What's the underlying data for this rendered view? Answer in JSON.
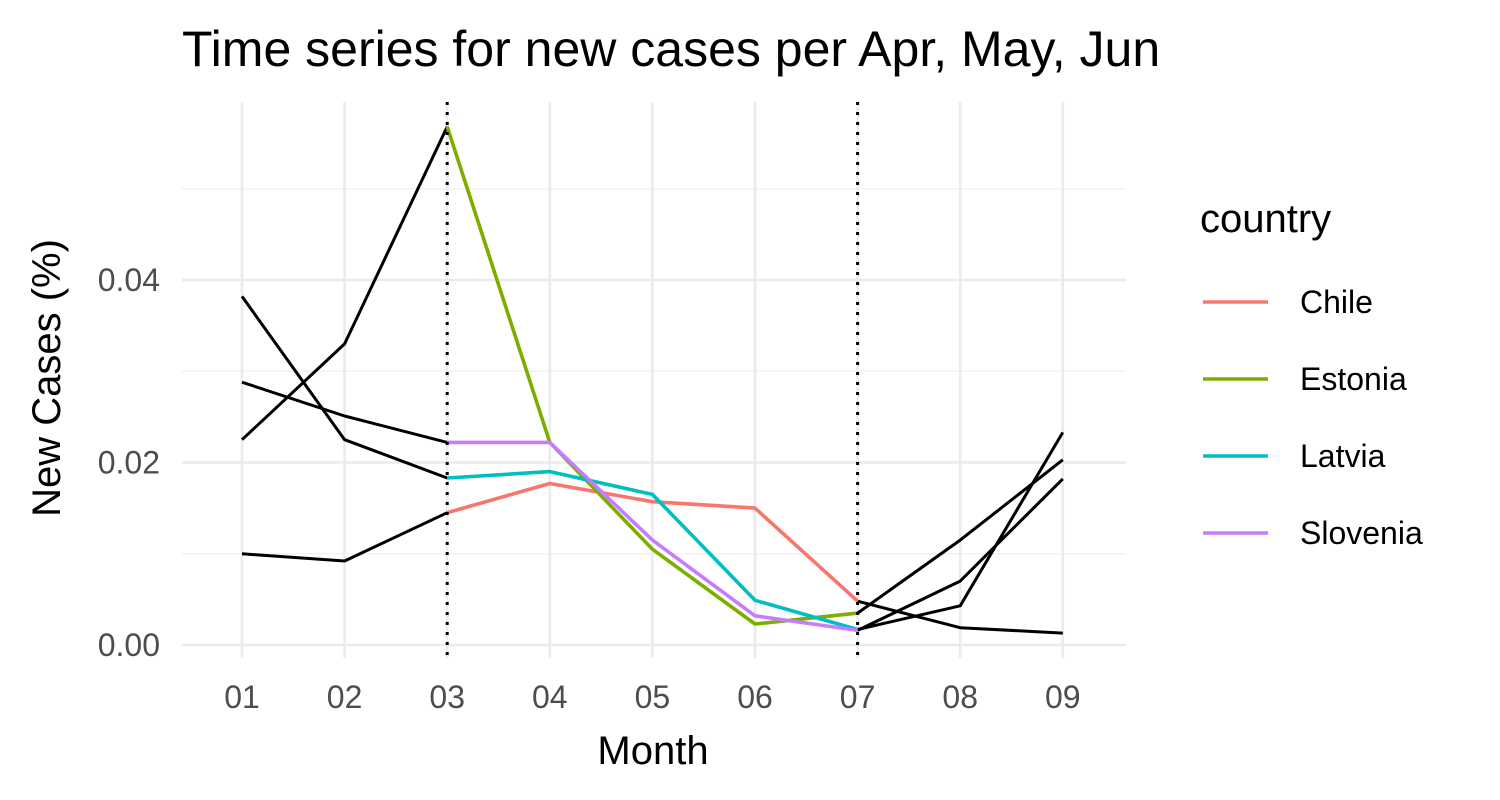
{
  "chart_data": {
    "type": "line",
    "title": "Time series for new cases per Apr, May, Jun",
    "xlabel": "Month",
    "ylabel": "New Cases (%)",
    "categories": [
      "01",
      "02",
      "03",
      "04",
      "05",
      "06",
      "07",
      "08",
      "09"
    ],
    "ylim": [
      -0.0005,
      0.0575
    ],
    "yticks": [
      0.0,
      0.02,
      0.04
    ],
    "ytick_labels": [
      "0.00",
      "0.02",
      "0.04"
    ],
    "grid": true,
    "reference_lines_x": [
      "03",
      "07"
    ],
    "legend": {
      "title": "country",
      "position": "right",
      "entries": [
        {
          "name": "Chile",
          "color": "#F8766D"
        },
        {
          "name": "Estonia",
          "color": "#7CAE00"
        },
        {
          "name": "Latvia",
          "color": "#00BFC4"
        },
        {
          "name": "Slovenia",
          "color": "#C77CFF"
        }
      ]
    },
    "series": [
      {
        "name": "Chile",
        "color": "#F8766D",
        "highlight": [
          2,
          6
        ],
        "values": [
          0.01,
          0.0092,
          0.0145,
          0.0177,
          0.0157,
          0.015,
          0.0048,
          0.0019,
          0.0013
        ]
      },
      {
        "name": "Estonia",
        "color": "#7CAE00",
        "highlight": [
          2,
          6
        ],
        "values": [
          0.0225,
          0.033,
          0.0568,
          0.0222,
          0.0105,
          0.0023,
          0.0035,
          0.0115,
          0.0203
        ]
      },
      {
        "name": "Latvia",
        "color": "#00BFC4",
        "highlight": [
          2,
          6
        ],
        "values": [
          0.0382,
          0.0225,
          0.0183,
          0.019,
          0.0165,
          0.0049,
          0.0017,
          0.0043,
          0.0233
        ]
      },
      {
        "name": "Slovenia",
        "color": "#C77CFF",
        "highlight": [
          2,
          6
        ],
        "values": [
          0.0288,
          0.0251,
          0.0222,
          0.0222,
          0.0115,
          0.0032,
          0.0016,
          0.007,
          0.0182
        ]
      }
    ]
  }
}
